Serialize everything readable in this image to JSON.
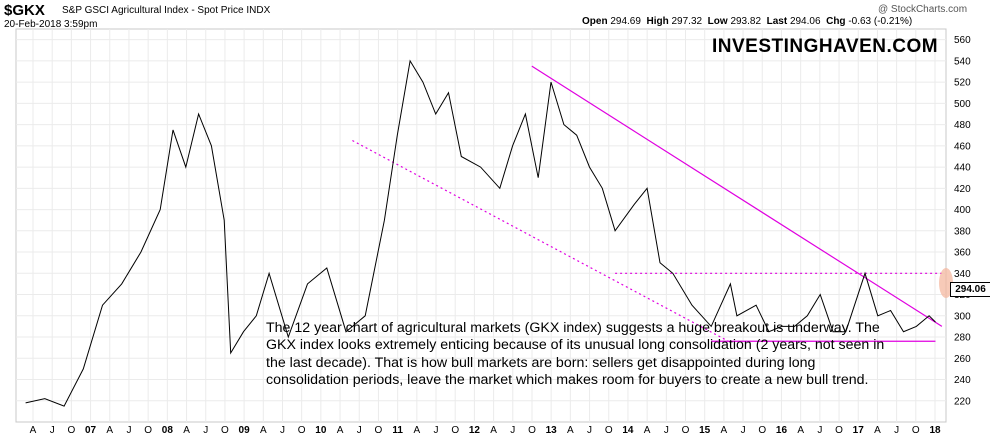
{
  "header": {
    "symbol": "$GKX",
    "index_name": "S&P GSCI Agricultural Index - Spot Price",
    "exchange": "INDX",
    "date": "20-Feb-2018 3:59pm",
    "copyright": "@ StockCharts.com",
    "quote": {
      "open_label": "Open",
      "open": "294.69",
      "high_label": "High",
      "high": "297.32",
      "low_label": "Low",
      "low": "293.82",
      "last_label": "Last",
      "last": "294.06",
      "chg_label": "Chg",
      "chg": "-0.63 (-0.21%)"
    }
  },
  "watermark": "INVESTINGHAVEN.COM",
  "annotation": "The 12 year chart of agricultural markets (GKX index) suggests a huge breakout is underway. The GKX index looks extremely enticing because of its unusual long consolidation (2 years, not seen in the last decade). That is how bull markets are born: sellers get disappointed during long consolidation periods, leave the market which makes room for buyers to create a new bull trend.",
  "colors": {
    "price": "#000000",
    "trendline": "#e000e0",
    "highlight": "#f4b8a0",
    "grid": "#ebebeb"
  },
  "chart_data": {
    "type": "line",
    "title": "S&P GSCI Agricultural Index - Spot Price",
    "x_ticks": [
      "A",
      "J",
      "O",
      "07",
      "A",
      "J",
      "O",
      "08",
      "A",
      "J",
      "O",
      "09",
      "A",
      "J",
      "O",
      "10",
      "A",
      "J",
      "O",
      "11",
      "A",
      "J",
      "O",
      "12",
      "A",
      "J",
      "O",
      "13",
      "A",
      "J",
      "O",
      "14",
      "A",
      "J",
      "O",
      "15",
      "A",
      "J",
      "O",
      "16",
      "A",
      "J",
      "O",
      "17",
      "A",
      "J",
      "O",
      "18"
    ],
    "ylim": [
      200,
      570
    ],
    "y_ticks": [
      220,
      240,
      260,
      280,
      300,
      320,
      340,
      360,
      380,
      400,
      420,
      440,
      460,
      480,
      500,
      520,
      540,
      560
    ],
    "last_value": "294.06",
    "series": [
      {
        "x": [
          "2006-04",
          "2006-07",
          "2006-10",
          "2007-01",
          "2007-04",
          "2007-07",
          "2007-10",
          "2008-01",
          "2008-03",
          "2008-05",
          "2008-07",
          "2008-09",
          "2008-11",
          "2008-12",
          "2009-02",
          "2009-04",
          "2009-06",
          "2009-09",
          "2009-12",
          "2010-03",
          "2010-06",
          "2010-09",
          "2010-12",
          "2011-02",
          "2011-04",
          "2011-06",
          "2011-08",
          "2011-10",
          "2011-12",
          "2012-03",
          "2012-06",
          "2012-08",
          "2012-10",
          "2012-12",
          "2013-02",
          "2013-04",
          "2013-06",
          "2013-08",
          "2013-10",
          "2013-12",
          "2014-03",
          "2014-05",
          "2014-07",
          "2014-09",
          "2014-12",
          "2015-03",
          "2015-06",
          "2015-07",
          "2015-10",
          "2015-12",
          "2016-02",
          "2016-04",
          "2016-06",
          "2016-08",
          "2016-10",
          "2016-12",
          "2017-03",
          "2017-05",
          "2017-07",
          "2017-09",
          "2017-11",
          "2018-01",
          "2018-02"
        ],
        "values": [
          218,
          222,
          215,
          250,
          310,
          330,
          360,
          400,
          475,
          440,
          490,
          460,
          390,
          265,
          285,
          300,
          340,
          280,
          330,
          345,
          285,
          300,
          390,
          470,
          540,
          520,
          490,
          510,
          450,
          440,
          420,
          460,
          490,
          430,
          520,
          480,
          470,
          440,
          420,
          380,
          405,
          420,
          350,
          340,
          310,
          290,
          330,
          300,
          310,
          285,
          290,
          290,
          300,
          320,
          285,
          285,
          340,
          300,
          305,
          285,
          290,
          300,
          294.06
        ]
      }
    ],
    "trendlines": [
      {
        "style": "solid",
        "from": [
          "2012-11",
          535
        ],
        "to": [
          "2018-03",
          290
        ]
      },
      {
        "style": "dotted",
        "from": [
          "2010-07",
          465
        ],
        "to": [
          "2015-06",
          275
        ]
      },
      {
        "style": "dotted",
        "from": [
          "2013-12",
          340
        ],
        "to": [
          "2018-03",
          340
        ]
      },
      {
        "style": "solid",
        "from": [
          "2015-03",
          276
        ],
        "to": [
          "2018-02",
          276
        ]
      }
    ]
  }
}
